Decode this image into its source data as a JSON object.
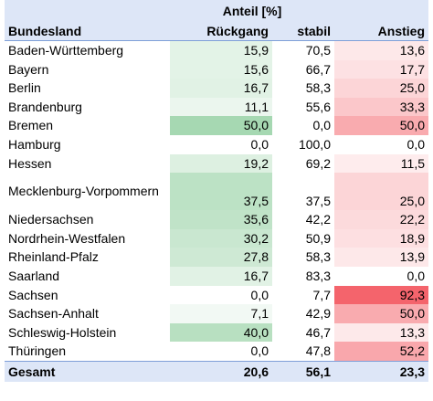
{
  "table": {
    "super_header": "Anteil [%]",
    "columns": [
      "Bundesland",
      "Rückgang",
      "stabil",
      "Anstieg"
    ],
    "rows": [
      {
        "state": "Baden-Württemberg",
        "ruckgang": "15,9",
        "stabil": "70,5",
        "anstieg": "13,6"
      },
      {
        "state": "Bayern",
        "ruckgang": "15,6",
        "stabil": "66,7",
        "anstieg": "17,7"
      },
      {
        "state": "Berlin",
        "ruckgang": "16,7",
        "stabil": "58,3",
        "anstieg": "25,0"
      },
      {
        "state": "Brandenburg",
        "ruckgang": "11,1",
        "stabil": "55,6",
        "anstieg": "33,3"
      },
      {
        "state": "Bremen",
        "ruckgang": "50,0",
        "stabil": "0,0",
        "anstieg": "50,0"
      },
      {
        "state": "Hamburg",
        "ruckgang": "0,0",
        "stabil": "100,0",
        "anstieg": "0,0"
      },
      {
        "state": "Hessen",
        "ruckgang": "19,2",
        "stabil": "69,2",
        "anstieg": "11,5"
      },
      {
        "state": "Mecklenburg-Vorpommern",
        "ruckgang": "37,5",
        "stabil": "37,5",
        "anstieg": "25,0"
      },
      {
        "state": "Niedersachsen",
        "ruckgang": "35,6",
        "stabil": "42,2",
        "anstieg": "22,2"
      },
      {
        "state": "Nordrhein-Westfalen",
        "ruckgang": "30,2",
        "stabil": "50,9",
        "anstieg": "18,9"
      },
      {
        "state": "Rheinland-Pfalz",
        "ruckgang": "27,8",
        "stabil": "58,3",
        "anstieg": "13,9"
      },
      {
        "state": "Saarland",
        "ruckgang": "16,7",
        "stabil": "83,3",
        "anstieg": "0,0"
      },
      {
        "state": "Sachsen",
        "ruckgang": "0,0",
        "stabil": "7,7",
        "anstieg": "92,3"
      },
      {
        "state": "Sachsen-Anhalt",
        "ruckgang": "7,1",
        "stabil": "42,9",
        "anstieg": "50,0"
      },
      {
        "state": "Schleswig-Holstein",
        "ruckgang": "40,0",
        "stabil": "46,7",
        "anstieg": "13,3"
      },
      {
        "state": "Thüringen",
        "ruckgang": "0,0",
        "stabil": "47,8",
        "anstieg": "52,2"
      }
    ],
    "total": {
      "label": "Gesamt",
      "ruckgang": "20,6",
      "stabil": "56,1",
      "anstieg": "23,3"
    }
  },
  "colors": {
    "header_bg": "#dde6f7",
    "decline_scale_max": "#a6d8b2",
    "increase_scale_max": "#f4646c"
  }
}
